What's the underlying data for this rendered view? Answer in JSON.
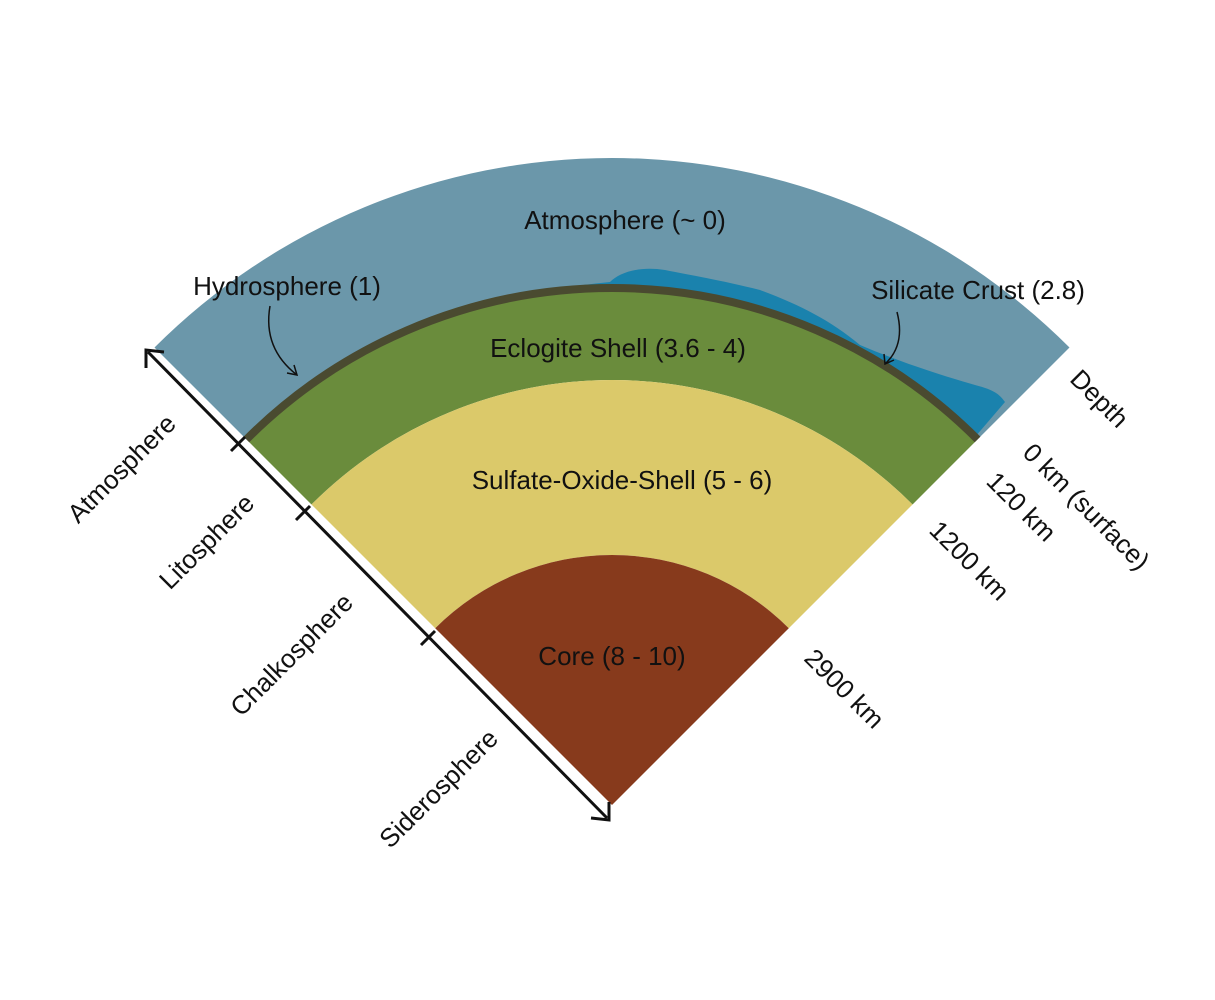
{
  "layers": [
    {
      "label": "Atmosphere (~ 0)"
    },
    {
      "label": "Hydrosphere (1)"
    },
    {
      "label": "Silicate Crust (2.8)"
    },
    {
      "label": "Eclogite Shell (3.6 - 4)"
    },
    {
      "label": "Sulfate-Oxide-Shell (5 - 6)"
    },
    {
      "label": "Core (8 - 10)"
    }
  ],
  "depth_axis": {
    "title": "Depth",
    "labels": [
      "0 km (surface)",
      "120 km",
      "1200 km",
      "2900 km"
    ]
  },
  "spheres": {
    "labels": [
      "Atmosphere",
      "Litosphere",
      "Chalkosphere",
      "Siderosphere"
    ]
  }
}
